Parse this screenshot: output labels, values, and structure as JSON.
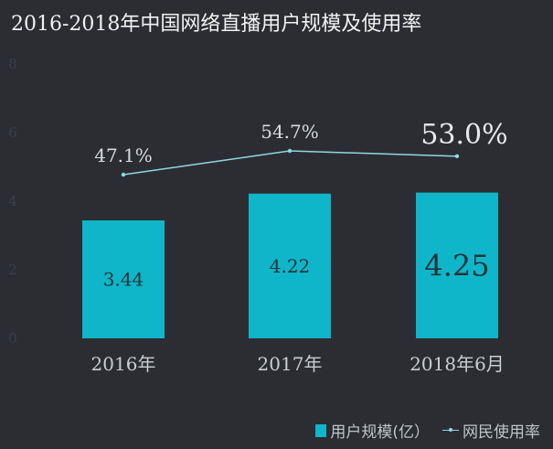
{
  "title": "2016-2018年中国网络直播用户规模及使用率",
  "colors": {
    "background": "#2b2d32",
    "bar": "#0fb5c8",
    "line": "#8fd8e2"
  },
  "legend": {
    "bar_label": "用户规模(亿）",
    "line_label": "网民使用率"
  },
  "chart_data": {
    "type": "bar",
    "categories": [
      "2016年",
      "2017年",
      "2018年6月"
    ],
    "series": [
      {
        "name": "用户规模(亿）",
        "type": "bar",
        "values": [
          3.44,
          4.22,
          4.25
        ],
        "labels": [
          "3.44",
          "4.22",
          "4.25"
        ]
      },
      {
        "name": "网民使用率",
        "type": "line",
        "values": [
          47.1,
          54.7,
          53.0
        ],
        "labels": [
          "47.1%",
          "54.7%",
          "53.0%"
        ]
      }
    ],
    "yticks": [
      "0",
      "2",
      "4",
      "6",
      "8"
    ],
    "ylim": [
      0,
      8
    ],
    "grid": false,
    "legend_position": "bottom-right"
  }
}
